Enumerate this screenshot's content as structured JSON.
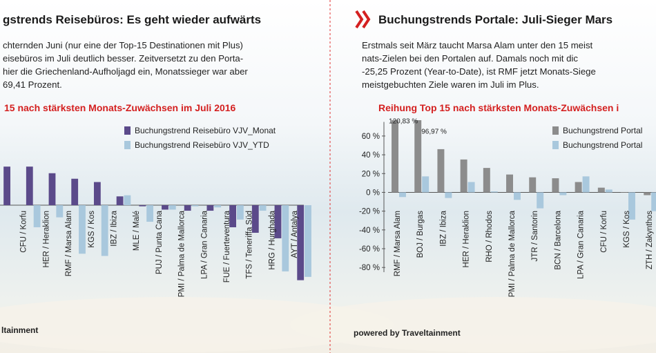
{
  "chart_data": [
    {
      "type": "bar",
      "title": "gstrends Reisebüros: Es geht wieder aufwärts",
      "text": [
        "chternden Juni (nur eine der Top-15 Destinationen mit Plus)",
        "eisebüros im Juli deutlich besser. Zeitversetzt zu den Porta-",
        "hier die Griechenland-Aufholjagd ein, Monatssieger war aber",
        "69,41 Prozent."
      ],
      "chart_title": "15 nach stärksten Monats-Zuwächsen im Juli 2016",
      "categories": [
        null,
        "CFU / Korfu",
        "HER / Heraklion",
        "RMF / Marsa Alam",
        "KGS / Kos",
        "IBZ / Ibiza",
        "MLE / Malé",
        "PUJ / Punta Cana",
        "PMI / Palma de Mallorca",
        "LPA / Gran Canaria",
        "FUE / Fuerteventura",
        "TFS / Teneriffa Süd",
        "HRG / Hurghada",
        "AYT / Antalya"
      ],
      "series": [
        {
          "name": "Buchungstrend Reisebüro VJV_Monat",
          "color": "#5b4a8a",
          "values": [
            35,
            35,
            29,
            24,
            21,
            8,
            -1,
            -4,
            -5,
            -5,
            -20,
            -25,
            -30,
            -68
          ]
        },
        {
          "name": "Buchungstrend Reisebüro VJV_YTD",
          "color": "#a9c8dd",
          "values": [
            null,
            -20,
            -11,
            -44,
            -46,
            9,
            -15,
            -4,
            -1,
            -2,
            -13,
            -5,
            -60,
            -65
          ]
        }
      ],
      "ylim": [
        -72,
        42
      ],
      "footer": "ltainment"
    },
    {
      "type": "bar",
      "title": "Buchungstrends Portale: Juli-Sieger Mars",
      "text": [
        "Erstmals seit März taucht Marsa Alam unter den 15 meist",
        "nats-Zielen bei den Portalen auf. Damals noch mit dic",
        "-25,25 Prozent (Year-to-Date), ist RMF jetzt Monats-Siege",
        "meistgebuchten Ziele waren im Juli im Plus."
      ],
      "chart_title": "Reihung Top 15 nach stärksten Monats-Zuwächsen i",
      "categories": [
        "RMF / Marsa Alam",
        "BOJ / Burgas",
        "IBZ / Ibiza",
        "HER / Heraklion",
        "RHO / Rhodos",
        "PMI / Palma de Mallorca",
        "JTR / Santorin",
        "BCN / Barcelona",
        "LPA / Gran Canaria",
        "CFU / Korfu",
        "KGS / Kos",
        "ZTH / Zakynthos"
      ],
      "series": [
        {
          "name": "Buchungstrend Portal",
          "color": "#8c8c8c",
          "values": [
            120.83,
            96.97,
            46,
            35,
            26,
            19,
            16,
            15,
            11,
            5,
            0,
            -3
          ],
          "value_labels": [
            "120,83 %",
            "96,97 %",
            null,
            null,
            null,
            null,
            null,
            null,
            null,
            null,
            null,
            null
          ]
        },
        {
          "name": "Buchungstrend Portal",
          "color": "#a9c8dd",
          "values": [
            -5,
            17,
            -6,
            11,
            1,
            -8,
            -17,
            -3,
            17,
            3,
            -29,
            -20
          ]
        }
      ],
      "ylim": [
        -85,
        75
      ],
      "yticks": [
        {
          "value": 60,
          "label": "60 %"
        },
        {
          "value": 40,
          "label": "40 %"
        },
        {
          "value": 20,
          "label": "20 %"
        },
        {
          "value": 0,
          "label": "0 %"
        },
        {
          "value": -20,
          "label": "-20 %"
        },
        {
          "value": -40,
          "label": "-40 %"
        },
        {
          "value": -60,
          "label": "-60 %"
        },
        {
          "value": -80,
          "label": "-80 %"
        }
      ],
      "footer": "powered by Traveltainment"
    }
  ]
}
